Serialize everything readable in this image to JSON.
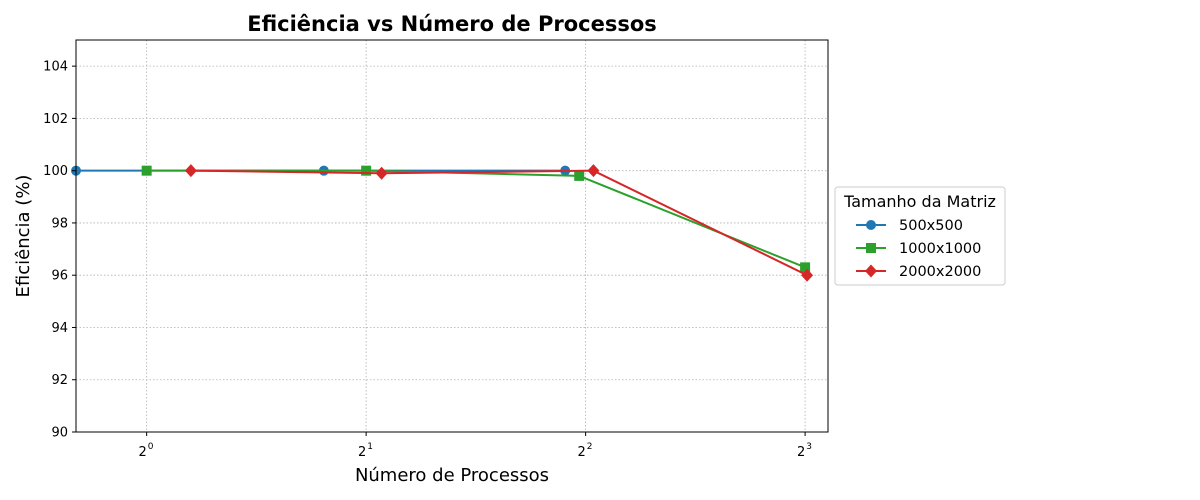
{
  "chart_data": {
    "type": "line",
    "title": "Eficiência vs Número de Processos",
    "xlabel": "Número de Processos",
    "ylabel": "Eficiência (%)",
    "x_scale": "log2",
    "xlim": [
      0.8,
      8.6
    ],
    "ylim": [
      90,
      105
    ],
    "x_ticks": [
      {
        "value": 1,
        "base": "2",
        "exp": "0"
      },
      {
        "value": 2,
        "base": "2",
        "exp": "1"
      },
      {
        "value": 4,
        "base": "2",
        "exp": "2"
      },
      {
        "value": 8,
        "base": "2",
        "exp": "3"
      }
    ],
    "y_ticks": [
      90,
      92,
      94,
      96,
      98,
      100,
      102,
      104
    ],
    "grid": true,
    "legend": {
      "title": "Tamanho da Matriz",
      "position": "outside right"
    },
    "series": [
      {
        "name": "500x500",
        "color": "#1f77b4",
        "marker": "circle",
        "x": [
          0.8,
          1.75,
          3.75
        ],
        "y": [
          100,
          100,
          100
        ]
      },
      {
        "name": "1000x1000",
        "color": "#2ca02c",
        "marker": "square",
        "x": [
          1,
          2,
          3.92,
          8
        ],
        "y": [
          100,
          100,
          99.8,
          96.3
        ]
      },
      {
        "name": "2000x2000",
        "color": "#d62728",
        "marker": "diamond",
        "x": [
          1.15,
          2.1,
          4.1,
          8.05
        ],
        "y": [
          100,
          99.9,
          100,
          96
        ]
      }
    ]
  }
}
